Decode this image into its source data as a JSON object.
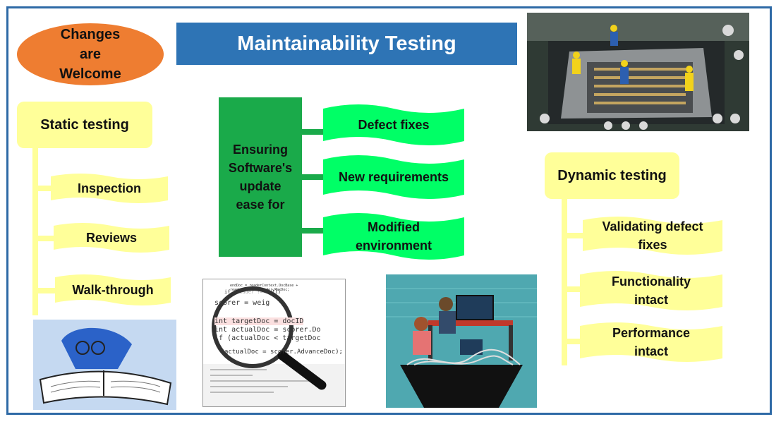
{
  "title": "Maintainability Testing",
  "oval": {
    "line1": "Changes",
    "line2": "are",
    "line3": "Welcome"
  },
  "static": {
    "heading": "Static testing",
    "items": [
      "Inspection",
      "Reviews",
      "Walk-through"
    ]
  },
  "center": {
    "lines": [
      "Ensuring",
      "Software's",
      "update",
      "ease for"
    ],
    "targets": [
      "Defect fixes",
      "New requirements",
      "Modified environment"
    ]
  },
  "dynamic": {
    "heading": "Dynamic testing",
    "items": [
      [
        "Validating defect",
        "fixes"
      ],
      [
        "Functionality",
        "intact"
      ],
      [
        "Performance",
        "intact"
      ]
    ]
  },
  "code": [
    "endDoc = readerContext.DocBase + readerContext.Reader.MaxDoc;",
    "if (reader != null)",
    "scorer = weig",
    "int targetDoc = docID",
    "int actualDoc = scorer.Do",
    "if (actualDoc < targetDoc",
    "actualDoc = scorer.AdvanceDoc);"
  ],
  "colors": {
    "title": "#2e74b5",
    "oval": "#ee7d31",
    "yellow": "#ffff99",
    "green_box": "#1aaa4a",
    "green_banner": "#00ff66",
    "frame": "#2e6aa6"
  }
}
